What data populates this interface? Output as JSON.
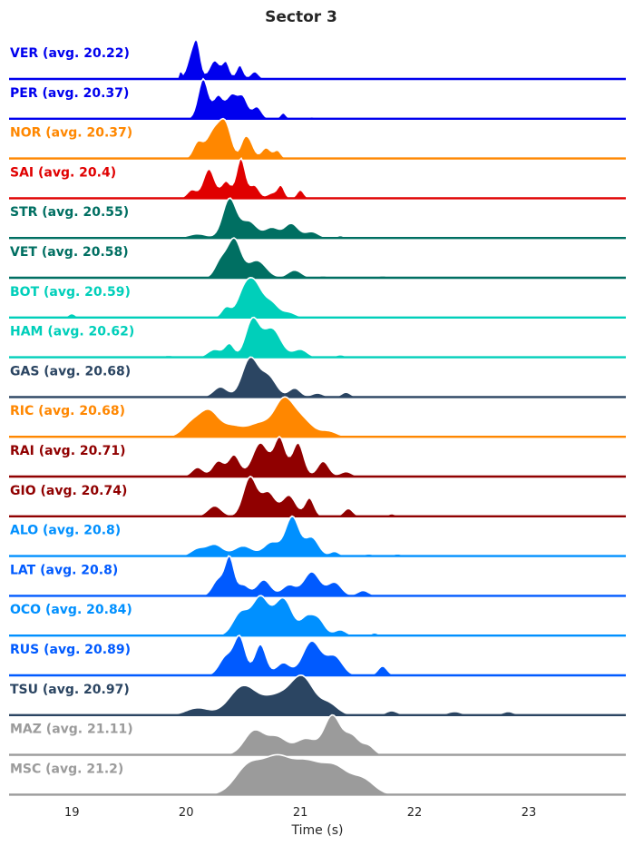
{
  "chart_data": {
    "type": "ridgeline",
    "title": "Sector 3",
    "xlabel": "Time (s)",
    "xlim": [
      18.45,
      23.85
    ],
    "xticks": [
      19,
      20,
      21,
      22,
      23
    ],
    "grid": false,
    "legend": "none",
    "series": [
      {
        "name": "VER",
        "label": "VER (avg. 20.22)",
        "avg": 20.22,
        "color": "#0000ee",
        "peaks": [
          [
            19.95,
            0.012,
            0.25
          ],
          [
            20.05,
            0.04,
            0.8
          ],
          [
            20.1,
            0.03,
            0.9
          ],
          [
            20.25,
            0.045,
            0.62
          ],
          [
            20.35,
            0.03,
            0.55
          ],
          [
            20.47,
            0.03,
            0.47
          ],
          [
            20.6,
            0.035,
            0.25
          ],
          [
            20.75,
            0.02,
            0.06
          ],
          [
            20.85,
            0.02,
            0.05
          ],
          [
            19.0,
            0.02,
            0.03
          ]
        ]
      },
      {
        "name": "PER",
        "label": "PER (avg. 20.37)",
        "avg": 20.37,
        "color": "#0000ee",
        "peaks": [
          [
            20.15,
            0.045,
            1.0
          ],
          [
            20.28,
            0.04,
            0.55
          ],
          [
            20.4,
            0.05,
            0.6
          ],
          [
            20.5,
            0.04,
            0.5
          ],
          [
            20.62,
            0.04,
            0.3
          ],
          [
            20.85,
            0.025,
            0.15
          ],
          [
            21.1,
            0.02,
            0.05
          ],
          [
            21.25,
            0.02,
            0.04
          ],
          [
            21.55,
            0.02,
            0.03
          ],
          [
            19.0,
            0.02,
            0.03
          ]
        ]
      },
      {
        "name": "NOR",
        "label": "NOR (avg. 20.37)",
        "avg": 20.37,
        "color": "#ff8700",
        "peaks": [
          [
            20.1,
            0.04,
            0.4
          ],
          [
            20.25,
            0.07,
            0.8
          ],
          [
            20.35,
            0.05,
            0.75
          ],
          [
            20.5,
            0.03,
            0.3
          ],
          [
            20.55,
            0.04,
            0.5
          ],
          [
            20.7,
            0.04,
            0.3
          ],
          [
            20.8,
            0.03,
            0.22
          ],
          [
            21.05,
            0.02,
            0.05
          ],
          [
            19.0,
            0.02,
            0.03
          ]
        ]
      },
      {
        "name": "SAI",
        "label": "SAI (avg. 20.4)",
        "avg": 20.4,
        "color": "#e00000",
        "peaks": [
          [
            20.05,
            0.04,
            0.2
          ],
          [
            20.2,
            0.05,
            0.7
          ],
          [
            20.35,
            0.04,
            0.4
          ],
          [
            20.48,
            0.04,
            0.95
          ],
          [
            20.6,
            0.04,
            0.3
          ],
          [
            20.75,
            0.04,
            0.12
          ],
          [
            20.83,
            0.03,
            0.3
          ],
          [
            21.0,
            0.03,
            0.2
          ],
          [
            19.0,
            0.02,
            0.04
          ]
        ]
      },
      {
        "name": "STR",
        "label": "STR (avg. 20.55)",
        "avg": 20.55,
        "color": "#006f62",
        "peaks": [
          [
            20.1,
            0.08,
            0.1
          ],
          [
            20.38,
            0.06,
            0.95
          ],
          [
            20.55,
            0.07,
            0.4
          ],
          [
            20.75,
            0.06,
            0.25
          ],
          [
            20.92,
            0.06,
            0.35
          ],
          [
            21.1,
            0.06,
            0.15
          ],
          [
            21.35,
            0.03,
            0.06
          ],
          [
            19.0,
            0.02,
            0.03
          ]
        ]
      },
      {
        "name": "VET",
        "label": "VET (avg. 20.58)",
        "avg": 20.58,
        "color": "#006f62",
        "peaks": [
          [
            20.3,
            0.05,
            0.4
          ],
          [
            20.42,
            0.06,
            1.0
          ],
          [
            20.62,
            0.08,
            0.45
          ],
          [
            20.95,
            0.06,
            0.2
          ],
          [
            21.2,
            0.05,
            0.05
          ],
          [
            21.72,
            0.05,
            0.05
          ],
          [
            19.0,
            0.02,
            0.03
          ]
        ]
      },
      {
        "name": "BOT",
        "label": "BOT (avg. 20.59)",
        "avg": 20.59,
        "color": "#00cfba",
        "peaks": [
          [
            20.35,
            0.04,
            0.3
          ],
          [
            20.5,
            0.06,
            0.6
          ],
          [
            20.6,
            0.07,
            0.97
          ],
          [
            20.75,
            0.06,
            0.4
          ],
          [
            20.9,
            0.06,
            0.15
          ],
          [
            19.0,
            0.03,
            0.12
          ]
        ]
      },
      {
        "name": "HAM",
        "label": "HAM (avg. 20.62)",
        "avg": 20.62,
        "color": "#00cfba",
        "peaks": [
          [
            19.6,
            0.05,
            0.03
          ],
          [
            19.85,
            0.05,
            0.04
          ],
          [
            20.25,
            0.06,
            0.15
          ],
          [
            20.38,
            0.04,
            0.25
          ],
          [
            20.58,
            0.06,
            0.7
          ],
          [
            20.75,
            0.08,
            0.55
          ],
          [
            21.0,
            0.06,
            0.15
          ],
          [
            21.35,
            0.04,
            0.05
          ],
          [
            21.55,
            0.04,
            0.03
          ],
          [
            19.0,
            0.02,
            0.03
          ]
        ]
      },
      {
        "name": "GAS",
        "label": "GAS (avg. 20.68)",
        "avg": 20.68,
        "color": "#2b4562",
        "peaks": [
          [
            20.3,
            0.06,
            0.25
          ],
          [
            20.56,
            0.07,
            0.95
          ],
          [
            20.72,
            0.07,
            0.5
          ],
          [
            20.95,
            0.05,
            0.22
          ],
          [
            21.15,
            0.05,
            0.1
          ],
          [
            21.4,
            0.04,
            0.12
          ],
          [
            19.0,
            0.02,
            0.04
          ]
        ]
      },
      {
        "name": "RIC",
        "label": "RIC (avg. 20.68)",
        "avg": 20.68,
        "color": "#ff8700",
        "peaks": [
          [
            20.05,
            0.08,
            0.25
          ],
          [
            20.2,
            0.08,
            0.45
          ],
          [
            20.4,
            0.1,
            0.2
          ],
          [
            20.65,
            0.1,
            0.25
          ],
          [
            20.85,
            0.08,
            0.6
          ],
          [
            21.0,
            0.1,
            0.35
          ],
          [
            21.25,
            0.07,
            0.1
          ]
        ]
      },
      {
        "name": "RAI",
        "label": "RAI (avg. 20.71)",
        "avg": 20.71,
        "color": "#900000",
        "peaks": [
          [
            20.1,
            0.05,
            0.15
          ],
          [
            20.28,
            0.05,
            0.25
          ],
          [
            20.42,
            0.05,
            0.35
          ],
          [
            20.65,
            0.07,
            0.55
          ],
          [
            20.82,
            0.05,
            0.62
          ],
          [
            20.98,
            0.05,
            0.55
          ],
          [
            21.2,
            0.05,
            0.25
          ],
          [
            21.4,
            0.05,
            0.08
          ]
        ]
      },
      {
        "name": "GIO",
        "label": "GIO (avg. 20.74)",
        "avg": 20.74,
        "color": "#900000",
        "peaks": [
          [
            20.25,
            0.06,
            0.2
          ],
          [
            20.56,
            0.06,
            0.75
          ],
          [
            20.72,
            0.06,
            0.45
          ],
          [
            20.9,
            0.06,
            0.4
          ],
          [
            21.08,
            0.04,
            0.35
          ],
          [
            21.42,
            0.04,
            0.15
          ],
          [
            21.8,
            0.03,
            0.05
          ]
        ]
      },
      {
        "name": "ALO",
        "label": "ALO (avg. 20.8)",
        "avg": 20.8,
        "color": "#0090ff",
        "peaks": [
          [
            20.1,
            0.06,
            0.15
          ],
          [
            20.25,
            0.07,
            0.25
          ],
          [
            20.5,
            0.08,
            0.22
          ],
          [
            20.75,
            0.07,
            0.3
          ],
          [
            20.93,
            0.06,
            0.85
          ],
          [
            21.1,
            0.06,
            0.4
          ],
          [
            21.3,
            0.04,
            0.1
          ],
          [
            21.6,
            0.04,
            0.05
          ],
          [
            21.85,
            0.04,
            0.05
          ]
        ]
      },
      {
        "name": "LAT",
        "label": "LAT (avg. 20.8)",
        "avg": 20.8,
        "color": "#005aff",
        "peaks": [
          [
            20.28,
            0.05,
            0.3
          ],
          [
            20.38,
            0.04,
            0.7
          ],
          [
            20.5,
            0.05,
            0.2
          ],
          [
            20.68,
            0.06,
            0.3
          ],
          [
            20.9,
            0.06,
            0.2
          ],
          [
            21.1,
            0.07,
            0.45
          ],
          [
            21.3,
            0.06,
            0.25
          ],
          [
            21.55,
            0.05,
            0.1
          ]
        ]
      },
      {
        "name": "OCO",
        "label": "OCO (avg. 20.84)",
        "avg": 20.84,
        "color": "#0090ff",
        "peaks": [
          [
            20.48,
            0.07,
            0.4
          ],
          [
            20.65,
            0.07,
            0.65
          ],
          [
            20.85,
            0.08,
            0.65
          ],
          [
            21.05,
            0.05,
            0.25
          ],
          [
            21.15,
            0.06,
            0.3
          ],
          [
            21.35,
            0.05,
            0.1
          ],
          [
            21.65,
            0.03,
            0.05
          ]
        ]
      },
      {
        "name": "RUS",
        "label": "RUS (avg. 20.89)",
        "avg": 20.89,
        "color": "#005aff",
        "peaks": [
          [
            20.35,
            0.06,
            0.3
          ],
          [
            20.47,
            0.05,
            0.6
          ],
          [
            20.65,
            0.05,
            0.5
          ],
          [
            20.85,
            0.06,
            0.2
          ],
          [
            21.1,
            0.08,
            0.55
          ],
          [
            21.3,
            0.07,
            0.3
          ],
          [
            21.72,
            0.04,
            0.15
          ]
        ]
      },
      {
        "name": "TSU",
        "label": "TSU (avg. 20.97)",
        "avg": 20.97,
        "color": "#2b4562",
        "peaks": [
          [
            20.1,
            0.1,
            0.1
          ],
          [
            20.5,
            0.12,
            0.4
          ],
          [
            20.8,
            0.12,
            0.25
          ],
          [
            21.02,
            0.1,
            0.5
          ],
          [
            21.25,
            0.08,
            0.15
          ],
          [
            21.8,
            0.05,
            0.06
          ],
          [
            22.35,
            0.06,
            0.05
          ],
          [
            22.82,
            0.05,
            0.05
          ]
        ]
      },
      {
        "name": "MAZ",
        "label": "MAZ (avg. 21.11)",
        "avg": 21.11,
        "color": "#9b9b9b",
        "peaks": [
          [
            20.6,
            0.09,
            0.45
          ],
          [
            20.8,
            0.08,
            0.3
          ],
          [
            21.05,
            0.1,
            0.3
          ],
          [
            21.28,
            0.07,
            0.7
          ],
          [
            21.45,
            0.07,
            0.35
          ],
          [
            21.6,
            0.05,
            0.15
          ]
        ]
      },
      {
        "name": "MSC",
        "label": "MSC (avg. 21.2)",
        "avg": 21.2,
        "color": "#9b9b9b",
        "peaks": [
          [
            20.55,
            0.12,
            0.3
          ],
          [
            20.8,
            0.12,
            0.35
          ],
          [
            21.05,
            0.12,
            0.3
          ],
          [
            21.3,
            0.12,
            0.28
          ],
          [
            21.55,
            0.1,
            0.15
          ]
        ]
      }
    ]
  }
}
